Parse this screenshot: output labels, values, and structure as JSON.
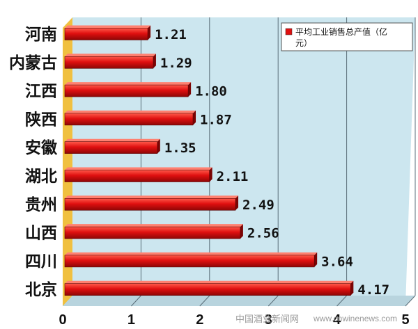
{
  "chart_data": {
    "type": "bar",
    "orientation": "horizontal",
    "categories": [
      "河南",
      "内蒙古",
      "江西",
      "陕西",
      "安徽",
      "湖北",
      "贵州",
      "山西",
      "四川",
      "北京"
    ],
    "value_labels": [
      "1.21",
      "1.29",
      "1.80",
      "1.87",
      "1.35",
      "2.11",
      "2.49",
      "2.56",
      "3.64",
      "4.17"
    ],
    "series": [
      {
        "name": "平均工业销售总产值（亿元）",
        "values": [
          1.21,
          1.29,
          1.8,
          1.87,
          1.35,
          2.11,
          2.49,
          2.56,
          3.64,
          4.17
        ],
        "color": "#e01010"
      }
    ],
    "xlim": [
      0,
      5
    ],
    "xticks": [
      "0",
      "1",
      "2",
      "3",
      "4",
      "5"
    ],
    "grid": true,
    "legend_position": "top-right",
    "plot_background": "#cce6ef",
    "wall_color": "#f0c040"
  },
  "watermark": {
    "text": "中国酒业新闻网",
    "url": "www.cnwinenews.com"
  }
}
